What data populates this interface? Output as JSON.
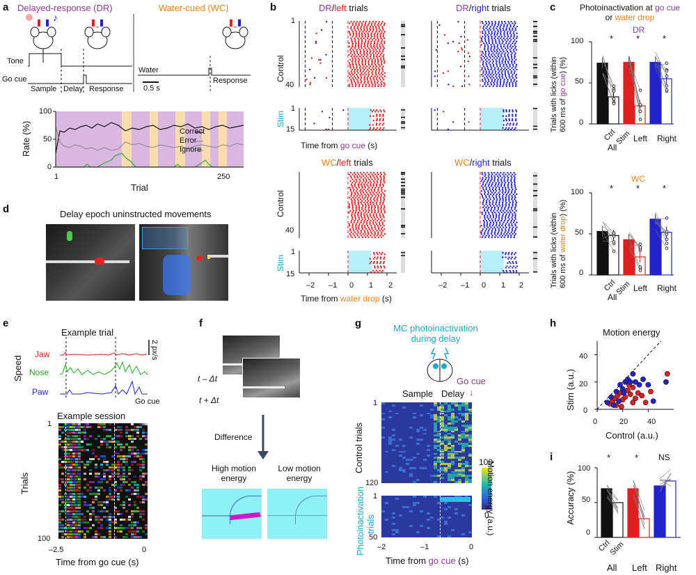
{
  "panels": {
    "a": "a",
    "b": "b",
    "c": "c",
    "d": "d",
    "e": "e",
    "f": "f",
    "g": "g",
    "h": "h",
    "i": "i"
  },
  "a": {
    "dr_title": "Delayed-response (DR)",
    "wc_title": "Water-cued (WC)",
    "tone": "Tone",
    "go_cue": "Go cue",
    "sample": "Sample",
    "delay": "Delay",
    "response": "Response",
    "water": "Water",
    "response2": "Response",
    "scale": "0.5 s",
    "rate_label": "Rate (%)",
    "trial_label": "Trial",
    "y_ticks": [
      "100",
      "50",
      "0"
    ],
    "x_ticks": [
      "1",
      "250"
    ],
    "legend": [
      "Correct",
      "Error",
      "Ignore"
    ],
    "colors": {
      "correct": "#111111",
      "error": "#888888",
      "ignore": "#3aa83a",
      "purple_bg": "#d9b8e0",
      "orange_bg": "#f8ddb0"
    }
  },
  "b": {
    "dr_left": [
      "DR",
      "/",
      "left",
      " trials"
    ],
    "dr_right": [
      "DR",
      "/",
      "right",
      " trials"
    ],
    "wc_left": [
      "WC",
      "/",
      "left",
      " trials"
    ],
    "wc_right": [
      "WC",
      "/",
      "right",
      " trials"
    ],
    "control": "Control",
    "stim": "Stim",
    "t_top": "1",
    "t_40": "40",
    "t_1": "1",
    "t_15": "15",
    "xaxis_dr": [
      "Time from ",
      "go cue",
      " (s)"
    ],
    "xaxis_wc": [
      "Time from ",
      "water drop",
      " (s)"
    ],
    "x_ticks": [
      "–2",
      "–1",
      "0",
      "1",
      "2"
    ]
  },
  "c": {
    "title_parts": [
      "Photoinactivation at ",
      "go cue",
      " or ",
      "water drop"
    ],
    "dr": "DR",
    "wc": "WC",
    "ylabel_top": [
      "Trials with licks (within",
      "600 ms of ",
      "go cue",
      ") (%)"
    ],
    "ylabel_bot": [
      "Trials with licks (within",
      "600 ms of ",
      "water drop",
      ") (%)"
    ],
    "y_ticks": [
      "100",
      "50",
      "0"
    ],
    "groups": [
      "All",
      "Left",
      "Right"
    ],
    "ctrl": "Ctrl",
    "stim": "Stim",
    "sig": "*",
    "chart_data": [
      {
        "type": "bar",
        "title": "DR",
        "categories": [
          "All Ctrl",
          "All Stim",
          "Left Ctrl",
          "Left Stim",
          "Right Ctrl",
          "Right Stim"
        ],
        "values": [
          74,
          33,
          75,
          22,
          75,
          55
        ],
        "ylabel": "Trials with licks (within 600 ms of go cue) (%)",
        "ylim": [
          0,
          100
        ]
      },
      {
        "type": "bar",
        "title": "WC",
        "categories": [
          "All Ctrl",
          "All Stim",
          "Left Ctrl",
          "Left Stim",
          "Right Ctrl",
          "Right Stim"
        ],
        "values": [
          53,
          48,
          43,
          22,
          68,
          52
        ],
        "ylabel": "Trials with licks (within 600 ms of water drop) (%)",
        "ylim": [
          0,
          100
        ]
      }
    ]
  },
  "d": {
    "title": "Delay epoch uninstructed movements"
  },
  "e": {
    "title": "Example trial",
    "speed": "Speed",
    "jaw": "Jaw",
    "nose": "Nose",
    "paw": "Paw",
    "scale": "2 px/s",
    "go_cue": "Go cue",
    "session": "Example session",
    "trials": "Trials",
    "t1": "1",
    "t100": "100",
    "x_left": "–2.5",
    "x_right": "0",
    "xaxis": "Time from go cue (s)"
  },
  "f": {
    "t_minus": "t – Δt",
    "t_plus": "t + Δt",
    "difference": "Difference",
    "high": "High motion energy",
    "low": "Low motion energy"
  },
  "g": {
    "title": "MC photoinactivation during delay",
    "sample": "Sample",
    "delay": "Delay",
    "go_cue": "Go cue",
    "control_trials": "Control trials",
    "photo_trials": "Photoinactivation trials",
    "t1": "1",
    "t120": "120",
    "t1b": "1",
    "t50": "50",
    "x_ticks": [
      "–2",
      "–1",
      "0"
    ],
    "xaxis": [
      "Time from ",
      "go cue",
      " (s)"
    ],
    "cbar": "Motion energy (a.u.)",
    "cbar_max": "100",
    "cbar_min": "0"
  },
  "h": {
    "title": "Motion energy",
    "ylabel": "Stim (a.u.)",
    "xlabel": "Control (a.u.)",
    "x_ticks": [
      "0",
      "20",
      "40"
    ],
    "y_ticks": [
      "40",
      "20",
      "0"
    ],
    "chart_data": {
      "type": "scatter",
      "title": "Motion energy",
      "xlabel": "Control (a.u.)",
      "ylabel": "Stim (a.u.)",
      "xlim": [
        0,
        60
      ],
      "ylim": [
        0,
        50
      ],
      "series": [
        {
          "name": "Left",
          "color": "#e02020",
          "points": [
            [
              10,
              4
            ],
            [
              12,
              6
            ],
            [
              14,
              8
            ],
            [
              16,
              10
            ],
            [
              18,
              12
            ],
            [
              20,
              7
            ],
            [
              22,
              9
            ],
            [
              24,
              14
            ],
            [
              26,
              11
            ],
            [
              28,
              16
            ],
            [
              30,
              8
            ],
            [
              32,
              12
            ],
            [
              35,
              10
            ],
            [
              38,
              5
            ],
            [
              42,
              13
            ],
            [
              15,
              3
            ],
            [
              19,
              2
            ],
            [
              25,
              18
            ],
            [
              28,
              5
            ],
            [
              55,
              26
            ]
          ]
        },
        {
          "name": "Right",
          "color": "#2323c8",
          "points": [
            [
              8,
              5
            ],
            [
              11,
              9
            ],
            [
              13,
              3
            ],
            [
              15,
              13
            ],
            [
              17,
              6
            ],
            [
              20,
              15
            ],
            [
              22,
              20
            ],
            [
              24,
              22
            ],
            [
              26,
              20
            ],
            [
              28,
              26
            ],
            [
              30,
              20
            ],
            [
              33,
              18
            ],
            [
              36,
              22
            ],
            [
              40,
              18
            ],
            [
              44,
              6
            ],
            [
              18,
              18
            ],
            [
              21,
              12
            ],
            [
              54,
              20
            ]
          ]
        }
      ]
    }
  },
  "i": {
    "ylabel": "Accuracy (%)",
    "y_ticks": [
      "100",
      "50",
      "0"
    ],
    "groups": [
      "All",
      "Left",
      "Right"
    ],
    "ctrl": "Ctrl",
    "stim": "Stim",
    "sig": [
      "*",
      "*",
      "NS"
    ],
    "chart_data": {
      "type": "bar",
      "categories": [
        "All Ctrl",
        "All Stim",
        "Left Ctrl",
        "Left Stim",
        "Right Ctrl",
        "Right Stim"
      ],
      "values": [
        70,
        50,
        70,
        27,
        74,
        81
      ],
      "ylabel": "Accuracy (%)",
      "ylim": [
        0,
        100
      ]
    }
  }
}
